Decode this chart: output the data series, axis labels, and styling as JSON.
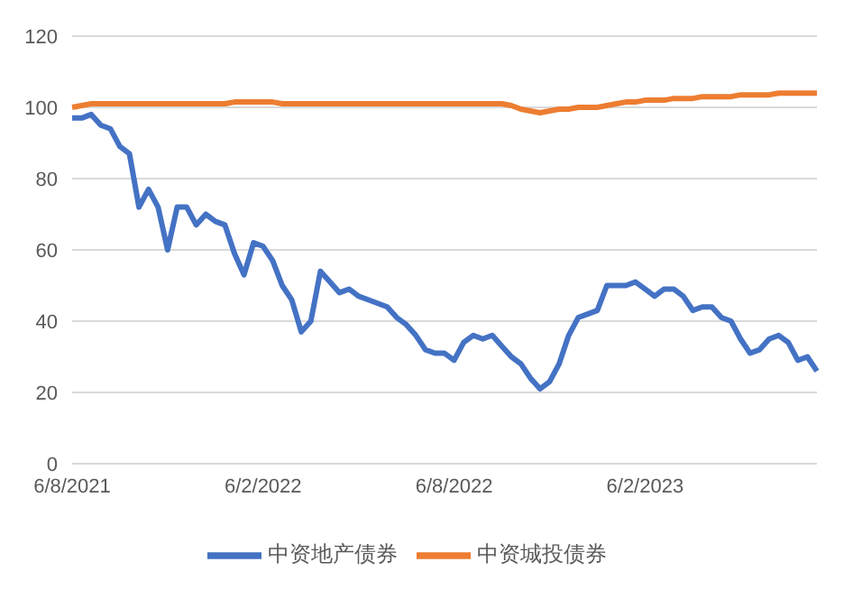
{
  "chart_data": {
    "type": "line",
    "categories": [
      "6/8/2021",
      null,
      null,
      null,
      null,
      null,
      null,
      null,
      null,
      null,
      null,
      null,
      null,
      null,
      null,
      null,
      null,
      null,
      null,
      null,
      "6/2/2022",
      null,
      null,
      null,
      null,
      null,
      null,
      null,
      null,
      null,
      null,
      null,
      null,
      null,
      null,
      null,
      null,
      null,
      null,
      null,
      "6/8/2022",
      null,
      null,
      null,
      null,
      null,
      null,
      null,
      null,
      null,
      null,
      null,
      null,
      null,
      null,
      null,
      null,
      null,
      null,
      null,
      "6/2/2023",
      null,
      null,
      null,
      null,
      null,
      null,
      null,
      null,
      null,
      null,
      null,
      null,
      null,
      null,
      null,
      null,
      null,
      null
    ],
    "series": [
      {
        "name": "中资地产债券",
        "color": "#4472c4",
        "values": [
          97,
          97,
          98,
          95,
          94,
          89,
          87,
          72,
          77,
          72,
          60,
          72,
          72,
          67,
          70,
          68,
          67,
          59,
          53,
          62,
          61,
          57,
          50,
          46,
          37,
          40,
          54,
          51,
          48,
          49,
          47,
          46,
          45,
          44,
          41,
          39,
          36,
          32,
          31,
          31,
          29,
          34,
          36,
          35,
          36,
          33,
          30,
          28,
          24,
          21,
          23,
          28,
          36,
          41,
          42,
          43,
          50,
          50,
          50,
          51,
          49,
          47,
          49,
          49,
          47,
          43,
          44,
          44,
          41,
          40,
          35,
          31,
          32,
          35,
          36,
          34,
          29,
          30,
          26
        ]
      },
      {
        "name": "中资城投债券",
        "color": "#ed7d31",
        "values": [
          100,
          100.5,
          101,
          101,
          101,
          101,
          101,
          101,
          101,
          101,
          101,
          101,
          101,
          101,
          101,
          101,
          101,
          101.5,
          101.5,
          101.5,
          101.5,
          101.5,
          101,
          101,
          101,
          101,
          101,
          101,
          101,
          101,
          101,
          101,
          101,
          101,
          101,
          101,
          101,
          101,
          101,
          101,
          101,
          101,
          101,
          101,
          101,
          101,
          100.5,
          99.5,
          99,
          98.5,
          99,
          99.5,
          99.5,
          100,
          100,
          100,
          100.5,
          101,
          101.5,
          101.5,
          102,
          102,
          102,
          102.5,
          102.5,
          102.5,
          103,
          103,
          103,
          103,
          103.5,
          103.5,
          103.5,
          103.5,
          104,
          104,
          104,
          104,
          104
        ]
      }
    ],
    "ylim": [
      0,
      120
    ],
    "yticks": [
      0,
      20,
      40,
      60,
      80,
      100,
      120
    ],
    "grid": "y",
    "legend": "bottom",
    "marker": "none",
    "line_style": "solid"
  }
}
